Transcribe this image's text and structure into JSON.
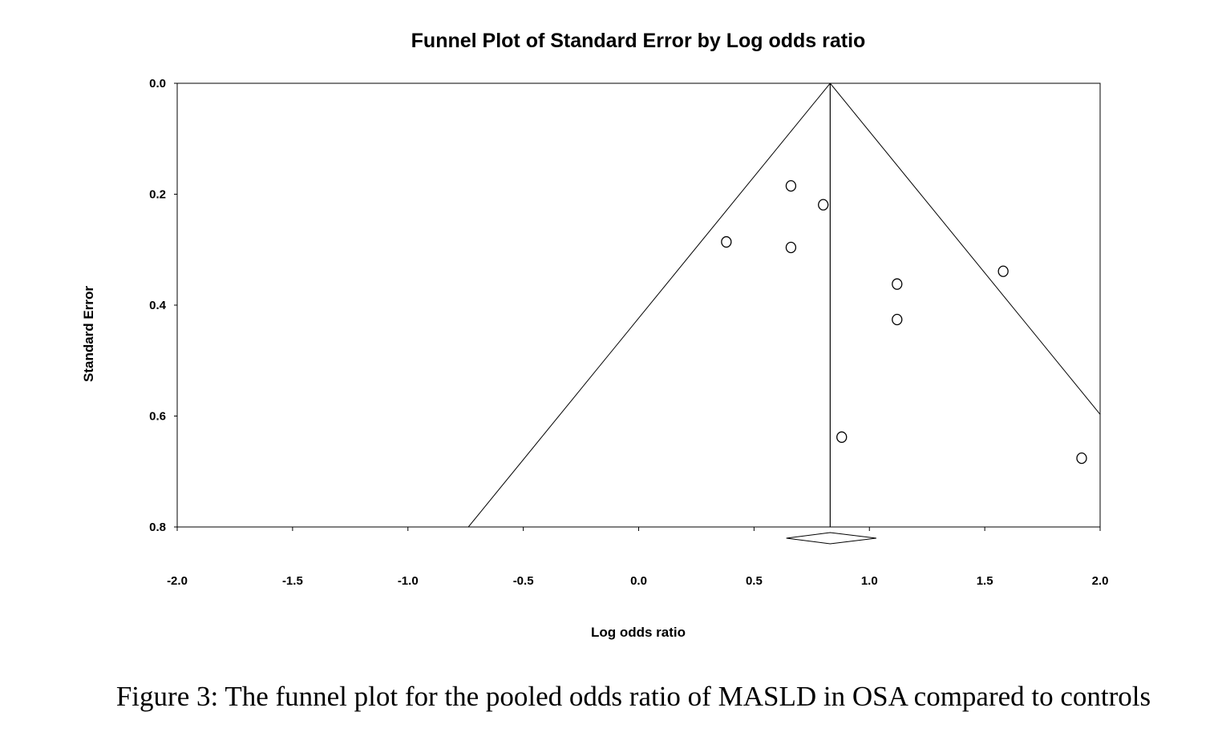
{
  "chart_data": {
    "type": "scatter",
    "title": "Funnel Plot of Standard Error by Log odds ratio",
    "xlabel": "Log odds ratio",
    "ylabel": "Standard Error",
    "xlim": [
      -2.0,
      2.0
    ],
    "ylim": [
      0.0,
      0.8
    ],
    "y_inverted": true,
    "x_ticks": [
      "-2.0",
      "-1.5",
      "-1.0",
      "-0.5",
      "0.0",
      "0.5",
      "1.0",
      "1.5",
      "2.0"
    ],
    "y_ticks": [
      "0.0",
      "0.2",
      "0.4",
      "0.6",
      "0.8"
    ],
    "grid": false,
    "pooled_estimate": 0.83,
    "funnel_multiplier": 1.96,
    "diamond": {
      "center": 0.83,
      "lower": 0.64,
      "upper": 1.03
    },
    "points": [
      {
        "x": 0.66,
        "y": 0.185
      },
      {
        "x": 0.8,
        "y": 0.219
      },
      {
        "x": 0.38,
        "y": 0.286
      },
      {
        "x": 0.66,
        "y": 0.296
      },
      {
        "x": 1.12,
        "y": 0.362
      },
      {
        "x": 1.58,
        "y": 0.339
      },
      {
        "x": 1.12,
        "y": 0.426
      },
      {
        "x": 0.88,
        "y": 0.638
      },
      {
        "x": 1.92,
        "y": 0.676
      }
    ],
    "marker_color": "#000000"
  },
  "caption": "Figure 3: The funnel plot for the pooled odds ratio of MASLD in OSA compared to controls"
}
